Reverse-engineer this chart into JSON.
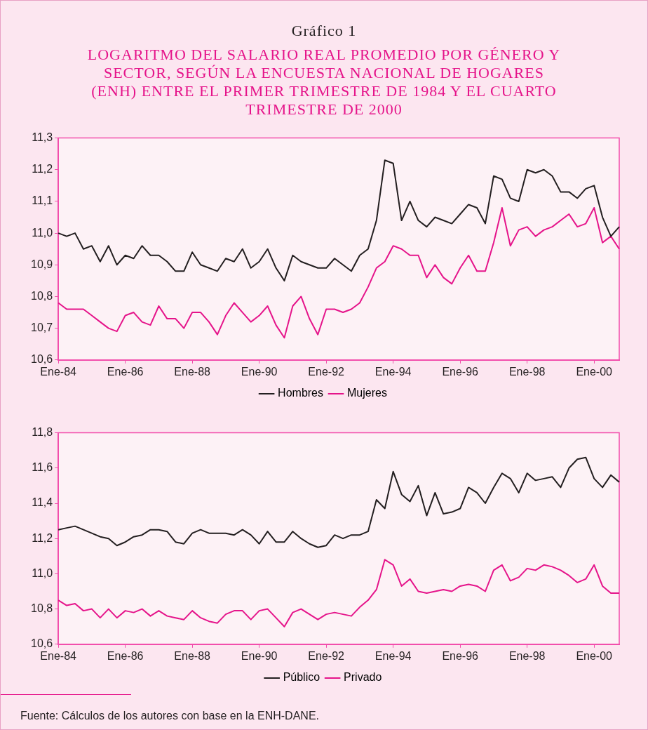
{
  "chart_data": [
    {
      "type": "line",
      "title": "Gráfico 1",
      "subtitle": "LOGARITMO DEL SALARIO REAL PROMEDIO POR GÉNERO Y SECTOR, SEGÚN LA ENCUESTA NACIONAL DE HOGARES (ENH) ENTRE EL PRIMER TRIMESTRE DE 1984 Y EL CUARTO TRIMESTRE DE 2000",
      "categories": [
        "Ene-84",
        null,
        null,
        null,
        null,
        null,
        null,
        null,
        "Ene-86",
        null,
        null,
        null,
        null,
        null,
        null,
        null,
        "Ene-88",
        null,
        null,
        null,
        null,
        null,
        null,
        null,
        "Ene-90",
        null,
        null,
        null,
        null,
        null,
        null,
        null,
        "Ene-92",
        null,
        null,
        null,
        null,
        null,
        null,
        null,
        "Ene-94",
        null,
        null,
        null,
        null,
        null,
        null,
        null,
        "Ene-96",
        null,
        null,
        null,
        null,
        null,
        null,
        null,
        "Ene-98",
        null,
        null,
        null,
        null,
        null,
        null,
        null,
        "Ene-00",
        null,
        null,
        null
      ],
      "series": [
        {
          "name": "Hombres",
          "color": "#231f20",
          "values": [
            11.0,
            10.99,
            11.0,
            10.95,
            10.96,
            10.91,
            10.96,
            10.9,
            10.93,
            10.92,
            10.96,
            10.93,
            10.93,
            10.91,
            10.88,
            10.88,
            10.94,
            10.9,
            10.89,
            10.88,
            10.92,
            10.91,
            10.95,
            10.89,
            10.91,
            10.95,
            10.89,
            10.85,
            10.93,
            10.91,
            10.9,
            10.89,
            10.89,
            10.92,
            10.9,
            10.88,
            10.93,
            10.95,
            11.04,
            11.23,
            11.22,
            11.04,
            11.1,
            11.04,
            11.02,
            11.05,
            11.04,
            11.03,
            11.06,
            11.09,
            11.08,
            11.03,
            11.18,
            11.17,
            11.11,
            11.1,
            11.2,
            11.19,
            11.2,
            11.18,
            11.13,
            11.13,
            11.11,
            11.14,
            11.15,
            11.05,
            10.99,
            11.02
          ]
        },
        {
          "name": "Mujeres",
          "color": "#e5148a",
          "values": [
            10.78,
            10.76,
            10.76,
            10.76,
            10.74,
            10.72,
            10.7,
            10.69,
            10.74,
            10.75,
            10.72,
            10.71,
            10.77,
            10.73,
            10.73,
            10.7,
            10.75,
            10.75,
            10.72,
            10.68,
            10.74,
            10.78,
            10.75,
            10.72,
            10.74,
            10.77,
            10.71,
            10.67,
            10.77,
            10.8,
            10.73,
            10.68,
            10.76,
            10.76,
            10.75,
            10.76,
            10.78,
            10.83,
            10.89,
            10.91,
            10.96,
            10.95,
            10.93,
            10.93,
            10.86,
            10.9,
            10.86,
            10.84,
            10.89,
            10.93,
            10.88,
            10.88,
            10.97,
            11.08,
            10.96,
            11.01,
            11.02,
            10.99,
            11.01,
            11.02,
            11.04,
            11.06,
            11.02,
            11.03,
            11.08,
            10.97,
            10.99,
            10.95
          ]
        }
      ],
      "ylim": [
        10.6,
        11.3
      ],
      "yticks": [
        {
          "value": 10.6,
          "label": "10,6"
        },
        {
          "value": 10.7,
          "label": "10,7"
        },
        {
          "value": 10.8,
          "label": "10,8"
        },
        {
          "value": 10.9,
          "label": "10,9"
        },
        {
          "value": 11.0,
          "label": "11,0"
        },
        {
          "value": 11.1,
          "label": "11,1"
        },
        {
          "value": 11.2,
          "label": "11,2"
        },
        {
          "value": 11.3,
          "label": "11,3"
        }
      ],
      "grid": false,
      "legend": "bottom"
    },
    {
      "type": "line",
      "categories": [
        "Ene-84",
        null,
        null,
        null,
        null,
        null,
        null,
        null,
        "Ene-86",
        null,
        null,
        null,
        null,
        null,
        null,
        null,
        "Ene-88",
        null,
        null,
        null,
        null,
        null,
        null,
        null,
        "Ene-90",
        null,
        null,
        null,
        null,
        null,
        null,
        null,
        "Ene-92",
        null,
        null,
        null,
        null,
        null,
        null,
        null,
        "Ene-94",
        null,
        null,
        null,
        null,
        null,
        null,
        null,
        "Ene-96",
        null,
        null,
        null,
        null,
        null,
        null,
        null,
        "Ene-98",
        null,
        null,
        null,
        null,
        null,
        null,
        null,
        "Ene-00",
        null,
        null,
        null
      ],
      "series": [
        {
          "name": "Público",
          "color": "#231f20",
          "values": [
            11.25,
            11.26,
            11.27,
            11.25,
            11.23,
            11.21,
            11.2,
            11.16,
            11.18,
            11.21,
            11.22,
            11.25,
            11.25,
            11.24,
            11.18,
            11.17,
            11.23,
            11.25,
            11.23,
            11.23,
            11.23,
            11.22,
            11.25,
            11.22,
            11.17,
            11.24,
            11.18,
            11.18,
            11.24,
            11.2,
            11.17,
            11.15,
            11.16,
            11.22,
            11.2,
            11.22,
            11.22,
            11.24,
            11.42,
            11.37,
            11.58,
            11.45,
            11.41,
            11.5,
            11.33,
            11.46,
            11.34,
            11.35,
            11.37,
            11.49,
            11.46,
            11.4,
            11.49,
            11.57,
            11.54,
            11.46,
            11.57,
            11.53,
            11.54,
            11.55,
            11.49,
            11.6,
            11.65,
            11.66,
            11.54,
            11.49,
            11.56,
            11.52
          ]
        },
        {
          "name": "Privado",
          "color": "#e5148a",
          "values": [
            10.85,
            10.82,
            10.83,
            10.79,
            10.8,
            10.75,
            10.8,
            10.75,
            10.79,
            10.78,
            10.8,
            10.76,
            10.79,
            10.76,
            10.75,
            10.74,
            10.79,
            10.75,
            10.73,
            10.72,
            10.77,
            10.79,
            10.79,
            10.74,
            10.79,
            10.8,
            10.75,
            10.7,
            10.78,
            10.8,
            10.77,
            10.74,
            10.77,
            10.78,
            10.77,
            10.76,
            10.81,
            10.85,
            10.91,
            11.08,
            11.05,
            10.93,
            10.97,
            10.9,
            10.89,
            10.9,
            10.91,
            10.9,
            10.93,
            10.94,
            10.93,
            10.9,
            11.02,
            11.05,
            10.96,
            10.98,
            11.03,
            11.02,
            11.05,
            11.04,
            11.02,
            10.99,
            10.95,
            10.97,
            11.05,
            10.93,
            10.89,
            10.89
          ]
        }
      ],
      "ylim": [
        10.6,
        11.8
      ],
      "yticks": [
        {
          "value": 10.6,
          "label": "10,6"
        },
        {
          "value": 10.8,
          "label": "10,8"
        },
        {
          "value": 11.0,
          "label": "11,0"
        },
        {
          "value": 11.2,
          "label": "11,2"
        },
        {
          "value": 11.4,
          "label": "11,4"
        },
        {
          "value": 11.6,
          "label": "11,6"
        },
        {
          "value": 11.8,
          "label": "11,8"
        }
      ],
      "grid": false,
      "legend": "bottom",
      "annotations": [
        "Fuente: Cálculos de los autores con base en la ENH-DANE."
      ]
    }
  ]
}
